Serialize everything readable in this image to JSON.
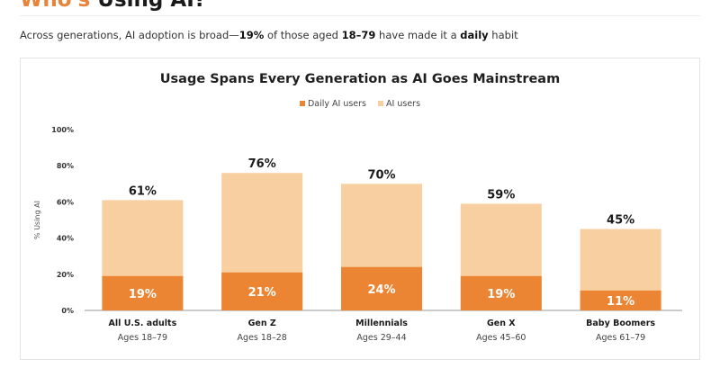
{
  "header": {
    "title_accent": "Who's",
    "title_rest": "Using AI?"
  },
  "intro": {
    "prefix": "Across generations, AI adoption is broad—",
    "highlight_pct": "19%",
    "middle": " of those aged ",
    "highlight_ages": "18–79",
    "middle2": " have made it a ",
    "highlight_daily": "daily",
    "suffix": " habit"
  },
  "colors": {
    "daily": "#ec8533",
    "ai_users": "#f8cfa1",
    "accent": "#e8833a"
  },
  "chart_data": {
    "type": "bar",
    "stacking": "overlay",
    "title": "Usage Spans Every Generation as AI Goes Mainstream",
    "ylabel": "% Using AI",
    "xlabel": "",
    "ylim": [
      0,
      100
    ],
    "yticks": [
      "0%",
      "20%",
      "40%",
      "60%",
      "80%",
      "100%"
    ],
    "ytick_values": [
      0,
      20,
      40,
      60,
      80,
      100
    ],
    "grid": false,
    "legend_position": "top-center",
    "categories": [
      "All U.S. adults",
      "Gen Z",
      "Millennials",
      "Gen X",
      "Baby Boomers"
    ],
    "subcategories": [
      "Ages 18–79",
      "Ages 18–28",
      "Ages 29–44",
      "Ages 45–60",
      "Ages 61–79"
    ],
    "series": [
      {
        "name": "Daily AI users",
        "values": [
          19,
          21,
          24,
          19,
          11
        ],
        "labels": [
          "19%",
          "21%",
          "24%",
          "19%",
          "11%"
        ]
      },
      {
        "name": "AI users",
        "values": [
          61,
          76,
          70,
          59,
          45
        ],
        "labels": [
          "61%",
          "76%",
          "70%",
          "59%",
          "45%"
        ]
      }
    ]
  }
}
